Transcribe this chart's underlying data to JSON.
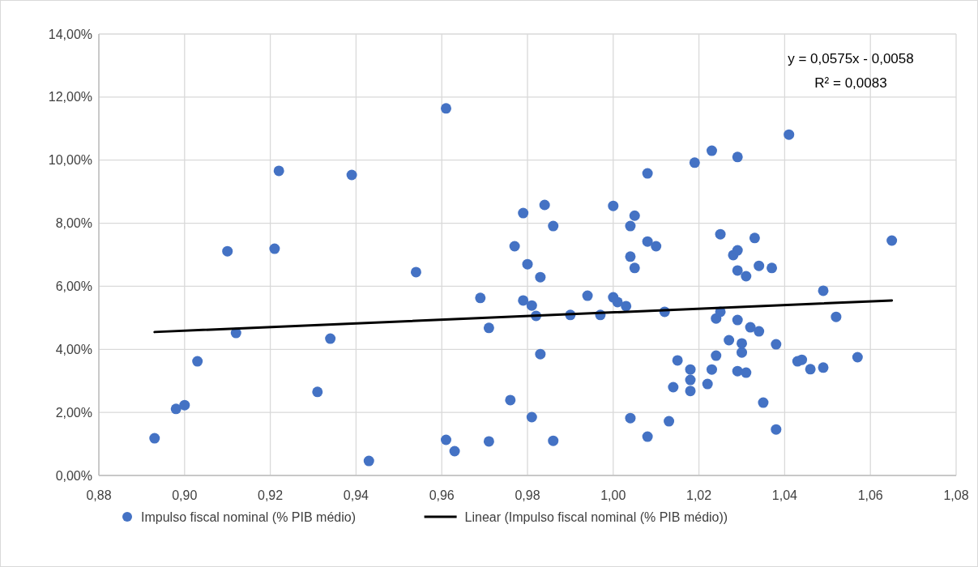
{
  "chart_data": {
    "type": "scatter",
    "grid": true,
    "legend": "bottom",
    "xlim": [
      0.88,
      1.08
    ],
    "xticks": [
      {
        "value": 0.88,
        "label": "0,88"
      },
      {
        "value": 0.9,
        "label": "0,90"
      },
      {
        "value": 0.92,
        "label": "0,92"
      },
      {
        "value": 0.94,
        "label": "0,94"
      },
      {
        "value": 0.96,
        "label": "0,96"
      },
      {
        "value": 0.98,
        "label": "0,98"
      },
      {
        "value": 1.0,
        "label": "1,00"
      },
      {
        "value": 1.02,
        "label": "1,02"
      },
      {
        "value": 1.04,
        "label": "1,04"
      },
      {
        "value": 1.06,
        "label": "1,06"
      },
      {
        "value": 1.08,
        "label": "1,08"
      }
    ],
    "ylim": [
      0,
      14
    ],
    "yticks": [
      {
        "value": 0,
        "label": "0,00%"
      },
      {
        "value": 2,
        "label": "2,00%"
      },
      {
        "value": 4,
        "label": "4,00%"
      },
      {
        "value": 6,
        "label": "6,00%"
      },
      {
        "value": 8,
        "label": "8,00%"
      },
      {
        "value": 10,
        "label": "10,00%"
      },
      {
        "value": 12,
        "label": "12,00%"
      },
      {
        "value": 14,
        "label": "14,00%"
      }
    ],
    "annotations": [
      "y = 0,0575x - 0,0058",
      "R² = 0,0083"
    ],
    "series": [
      {
        "name": "Impulso fiscal nominal (% PIB médio)",
        "marker": "circle",
        "color": "#4472c4",
        "x": [
          0.893,
          0.898,
          0.9,
          0.903,
          0.91,
          0.912,
          0.921,
          0.922,
          0.931,
          0.934,
          0.939,
          0.943,
          0.954,
          0.961,
          0.961,
          0.963,
          0.969,
          0.971,
          0.971,
          0.976,
          0.977,
          0.979,
          0.979,
          0.98,
          0.981,
          0.981,
          0.982,
          0.983,
          0.983,
          0.984,
          0.986,
          0.986,
          0.99,
          0.994,
          0.997,
          1.0,
          1.0,
          1.001,
          1.003,
          1.004,
          1.004,
          1.004,
          1.005,
          1.005,
          1.008,
          1.008,
          1.008,
          1.01,
          1.012,
          1.013,
          1.014,
          1.015,
          1.018,
          1.018,
          1.018,
          1.019,
          1.022,
          1.023,
          1.023,
          1.024,
          1.024,
          1.025,
          1.025,
          1.027,
          1.028,
          1.029,
          1.029,
          1.029,
          1.029,
          1.029,
          1.03,
          1.03,
          1.031,
          1.031,
          1.032,
          1.033,
          1.034,
          1.034,
          1.035,
          1.037,
          1.038,
          1.038,
          1.041,
          1.043,
          1.044,
          1.046,
          1.049,
          1.049,
          1.052,
          1.057,
          1.065
        ],
        "values": [
          1.18,
          2.11,
          2.23,
          3.62,
          7.11,
          4.52,
          7.19,
          9.66,
          2.65,
          4.34,
          9.53,
          0.46,
          6.45,
          11.64,
          1.13,
          0.77,
          5.63,
          4.68,
          1.08,
          2.39,
          7.27,
          8.32,
          5.55,
          6.7,
          5.39,
          1.85,
          5.06,
          3.85,
          6.29,
          8.58,
          7.91,
          1.1,
          5.09,
          5.7,
          5.09,
          8.55,
          5.65,
          5.5,
          5.37,
          1.82,
          7.91,
          6.94,
          8.24,
          6.58,
          1.23,
          7.42,
          9.58,
          7.27,
          5.19,
          1.72,
          2.8,
          3.65,
          3.03,
          3.36,
          2.68,
          9.92,
          2.9,
          3.36,
          10.3,
          4.98,
          3.8,
          7.65,
          5.19,
          4.29,
          6.99,
          7.14,
          10.1,
          4.93,
          6.5,
          3.31,
          3.9,
          4.19,
          3.26,
          6.32,
          4.7,
          7.53,
          6.65,
          4.57,
          2.31,
          6.58,
          4.16,
          1.46,
          10.81,
          3.62,
          3.67,
          3.37,
          5.86,
          3.42,
          5.03,
          3.75,
          7.45
        ]
      },
      {
        "name": "Linear (Impulso fiscal nominal (% PIB médio))",
        "type": "line",
        "color": "#000000",
        "x": [
          0.893,
          1.065
        ],
        "values": [
          4.55,
          5.55
        ]
      }
    ]
  }
}
